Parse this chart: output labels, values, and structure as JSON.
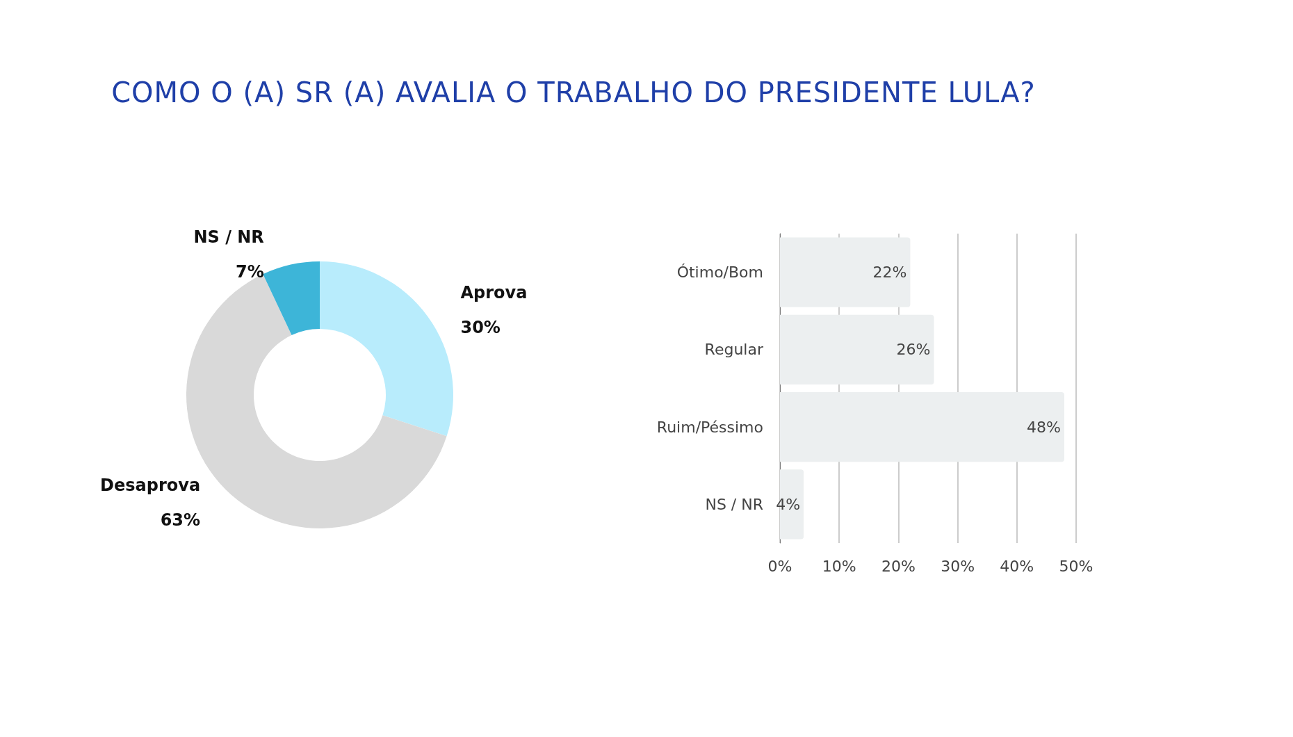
{
  "chart_data": [
    {
      "type": "donut",
      "title": "COMO O (A) SR (A) AVALIA O TRABALHO DO PRESIDENTE LULA?",
      "categories": [
        "Aprova",
        "Desaprova",
        "NS / NR"
      ],
      "values": [
        30,
        63,
        7
      ],
      "colors": [
        "#b8ecfc",
        "#d9d9d9",
        "#3db5d8"
      ],
      "value_labels": [
        "30%",
        "63%",
        "7%"
      ],
      "legend": false
    },
    {
      "type": "bar",
      "orientation": "horizontal",
      "categories": [
        "Ótimo/Bom",
        "Regular",
        "Ruim/Péssimo",
        "NS / NR"
      ],
      "values": [
        22,
        26,
        48,
        4
      ],
      "color": "#eceff0",
      "value_labels": [
        "22%",
        "26%",
        "48%",
        "4%"
      ],
      "xlim": [
        0,
        50
      ],
      "xticks": [
        {
          "value": 0,
          "label": "0%"
        },
        {
          "value": 10,
          "label": "10%"
        },
        {
          "value": 20,
          "label": "20%"
        },
        {
          "value": 30,
          "label": "30%"
        },
        {
          "value": 40,
          "label": "40%"
        },
        {
          "value": 50,
          "label": "50%"
        }
      ],
      "grid": "x",
      "legend": false
    }
  ]
}
